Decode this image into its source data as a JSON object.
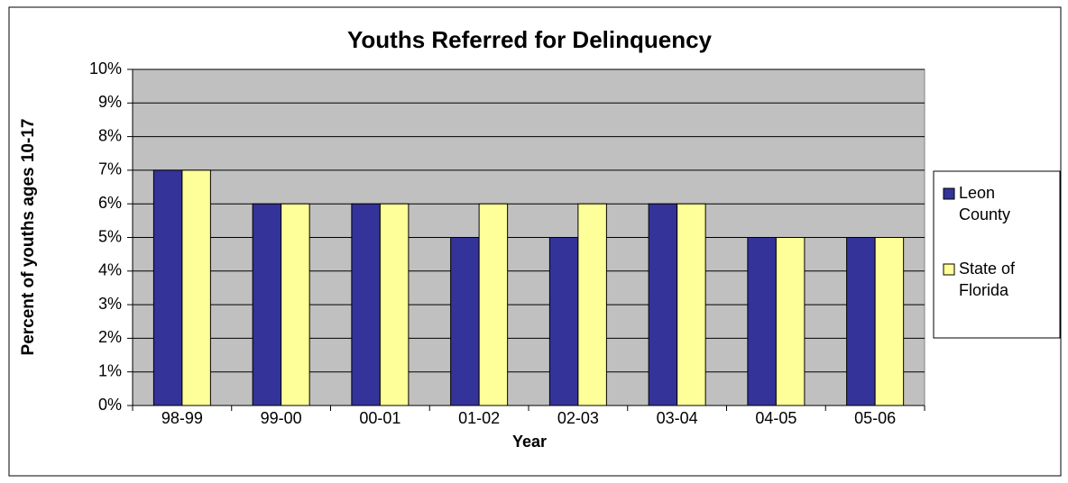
{
  "chart_data": {
    "type": "bar",
    "title": "Youths Referred for Delinquency",
    "x_label": "Year",
    "y_label": "Percent of youths ages 10-17",
    "categories": [
      "98-99",
      "99-00",
      "00-01",
      "01-02",
      "02-03",
      "03-04",
      "04-05",
      "05-06"
    ],
    "series": [
      {
        "name": "Leon County",
        "color": "#333399",
        "values": [
          7,
          6,
          6,
          5,
          5,
          6,
          5,
          5
        ]
      },
      {
        "name": "State of Florida",
        "color": "#ffff99",
        "values": [
          7,
          6,
          6,
          6,
          6,
          6,
          5,
          5
        ]
      }
    ],
    "ylim": [
      0,
      10
    ],
    "yticks": [
      {
        "value": 0,
        "label": "0%"
      },
      {
        "value": 1,
        "label": "1%"
      },
      {
        "value": 2,
        "label": "2%"
      },
      {
        "value": 3,
        "label": "3%"
      },
      {
        "value": 4,
        "label": "4%"
      },
      {
        "value": 5,
        "label": "5%"
      },
      {
        "value": 6,
        "label": "6%"
      },
      {
        "value": 7,
        "label": "7%"
      },
      {
        "value": 8,
        "label": "8%"
      },
      {
        "value": 9,
        "label": "9%"
      },
      {
        "value": 10,
        "label": "10%"
      }
    ],
    "grid": true,
    "legend": "right"
  }
}
